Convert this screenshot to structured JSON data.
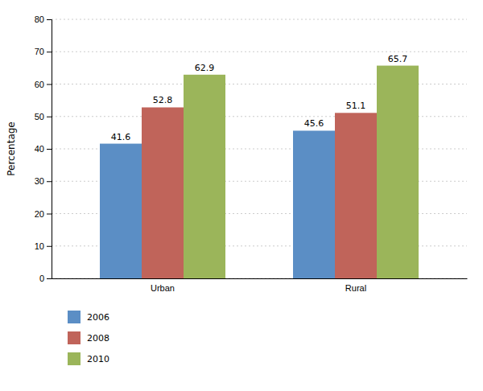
{
  "chart_data": {
    "type": "bar",
    "categories": [
      "Urban",
      "Rural"
    ],
    "series": [
      {
        "name": "2006",
        "color": "#5B8EC5",
        "values": [
          41.6,
          45.6
        ]
      },
      {
        "name": "2008",
        "color": "#C0645A",
        "values": [
          52.8,
          51.1
        ]
      },
      {
        "name": "2010",
        "color": "#9BB55A",
        "values": [
          62.9,
          65.7
        ]
      }
    ],
    "ylabel": "Percentage",
    "ylim": [
      0,
      80
    ],
    "yticks": [
      0,
      10,
      20,
      30,
      40,
      50,
      60,
      70,
      80
    ],
    "grid": true,
    "data_labels": true,
    "legend": "bottom"
  }
}
